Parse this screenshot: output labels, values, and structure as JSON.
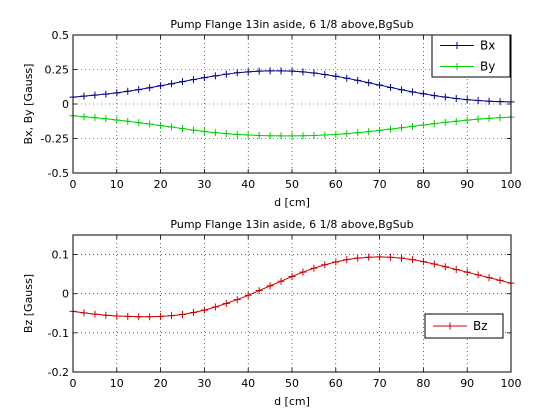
{
  "chart_data": [
    {
      "type": "line",
      "title": "Pump Flange 13in aside, 6 1/8 above,BgSub",
      "xlabel": "d [cm]",
      "ylabel": "Bx, By [Gauss]",
      "xlim": [
        0,
        100
      ],
      "ylim": [
        -0.5,
        0.5
      ],
      "xticks": [
        "0",
        "10",
        "20",
        "30",
        "40",
        "50",
        "60",
        "70",
        "80",
        "90",
        "100"
      ],
      "yticks": [
        "-0.5",
        "-0.25",
        "0",
        "0.25",
        "0.5"
      ],
      "grid": true,
      "legend_position": "top-right",
      "x": [
        0,
        2.5,
        5,
        7.5,
        10,
        12.5,
        15,
        17.5,
        20,
        22.5,
        25,
        27.5,
        30,
        32.5,
        35,
        37.5,
        40,
        42.5,
        45,
        47.5,
        50,
        52.5,
        55,
        57.5,
        60,
        62.5,
        65,
        67.5,
        70,
        72.5,
        75,
        77.5,
        80,
        82.5,
        85,
        87.5,
        90,
        92.5,
        95,
        97.5,
        100
      ],
      "series": [
        {
          "name": "Bx",
          "color": "#00008f",
          "values": [
            0.05,
            0.057,
            0.064,
            0.072,
            0.081,
            0.092,
            0.104,
            0.118,
            0.132,
            0.147,
            0.162,
            0.177,
            0.191,
            0.204,
            0.216,
            0.226,
            0.233,
            0.238,
            0.24,
            0.24,
            0.238,
            0.233,
            0.225,
            0.214,
            0.201,
            0.187,
            0.171,
            0.154,
            0.137,
            0.12,
            0.103,
            0.088,
            0.074,
            0.061,
            0.05,
            0.04,
            0.032,
            0.025,
            0.02,
            0.017,
            0.015
          ]
        },
        {
          "name": "By",
          "color": "#00d000",
          "values": [
            -0.085,
            -0.092,
            -0.099,
            -0.107,
            -0.116,
            -0.125,
            -0.135,
            -0.145,
            -0.156,
            -0.167,
            -0.178,
            -0.189,
            -0.199,
            -0.208,
            -0.215,
            -0.221,
            -0.225,
            -0.228,
            -0.23,
            -0.231,
            -0.231,
            -0.23,
            -0.228,
            -0.225,
            -0.221,
            -0.215,
            -0.208,
            -0.2,
            -0.191,
            -0.182,
            -0.172,
            -0.162,
            -0.152,
            -0.142,
            -0.133,
            -0.125,
            -0.117,
            -0.11,
            -0.104,
            -0.099,
            -0.095
          ]
        }
      ]
    },
    {
      "type": "line",
      "title": "Pump Flange 13in aside, 6 1/8 above,BgSub",
      "xlabel": "d [cm]",
      "ylabel": "Bz [Gauss]",
      "xlim": [
        0,
        100
      ],
      "ylim": [
        -0.2,
        0.15
      ],
      "xticks": [
        "0",
        "10",
        "20",
        "30",
        "40",
        "50",
        "60",
        "70",
        "80",
        "90",
        "100"
      ],
      "yticks": [
        "-0.2",
        "-0.1",
        "0",
        "0.1"
      ],
      "grid": true,
      "legend_position": "bottom-right",
      "x": [
        0,
        2.5,
        5,
        7.5,
        10,
        12.5,
        15,
        17.5,
        20,
        22.5,
        25,
        27.5,
        30,
        32.5,
        35,
        37.5,
        40,
        42.5,
        45,
        47.5,
        50,
        52.5,
        55,
        57.5,
        60,
        62.5,
        65,
        67.5,
        70,
        72.5,
        75,
        77.5,
        80,
        82.5,
        85,
        87.5,
        90,
        92.5,
        95,
        97.5,
        100
      ],
      "series": [
        {
          "name": "Bz",
          "color": "#d00000",
          "values": [
            -0.045,
            -0.049,
            -0.052,
            -0.055,
            -0.057,
            -0.058,
            -0.059,
            -0.059,
            -0.058,
            -0.056,
            -0.053,
            -0.048,
            -0.042,
            -0.034,
            -0.025,
            -0.015,
            -0.004,
            0.008,
            0.02,
            0.032,
            0.044,
            0.055,
            0.065,
            0.074,
            0.081,
            0.087,
            0.091,
            0.093,
            0.094,
            0.093,
            0.091,
            0.087,
            0.082,
            0.076,
            0.069,
            0.062,
            0.055,
            0.048,
            0.041,
            0.034,
            0.027
          ]
        }
      ]
    }
  ]
}
